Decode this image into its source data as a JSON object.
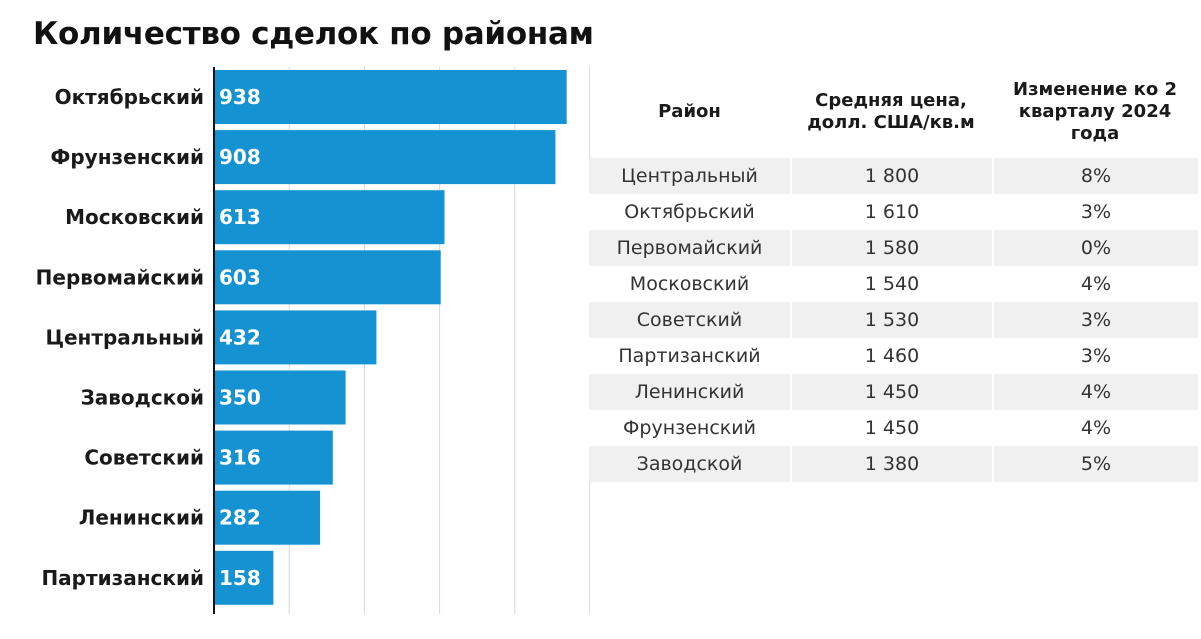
{
  "title": "Количество сделок по районам",
  "colors": {
    "bar": "#1592d2",
    "axis": "#111111",
    "grid": "#d9d9d9",
    "table_stripe": "#f0f0f0"
  },
  "chart_data": {
    "type": "bar",
    "orientation": "horizontal",
    "title": "Количество сделок по районам",
    "categories": [
      "Октябрьский",
      "Фрунзенский",
      "Московский",
      "Первомайский",
      "Центральный",
      "Заводской",
      "Советский",
      "Ленинский",
      "Партизанский"
    ],
    "values": [
      938,
      908,
      613,
      603,
      432,
      350,
      316,
      282,
      158
    ],
    "xlim": [
      0,
      1000
    ],
    "grid": true
  },
  "table": {
    "headers": [
      "Район",
      "Средняя цена, долл. США/кв.м",
      "Изменение ко 2 кварталу 2024 года"
    ],
    "rows": [
      [
        "Центральный",
        "1 800",
        "8%"
      ],
      [
        "Октябрьский",
        "1 610",
        "3%"
      ],
      [
        "Первомайский",
        "1 580",
        "0%"
      ],
      [
        "Московский",
        "1 540",
        "4%"
      ],
      [
        "Советский",
        "1 530",
        "3%"
      ],
      [
        "Партизанский",
        "1 460",
        "3%"
      ],
      [
        "Ленинский",
        "1 450",
        "4%"
      ],
      [
        "Фрунзенский",
        "1 450",
        "4%"
      ],
      [
        "Заводской",
        "1 380",
        "5%"
      ]
    ]
  }
}
